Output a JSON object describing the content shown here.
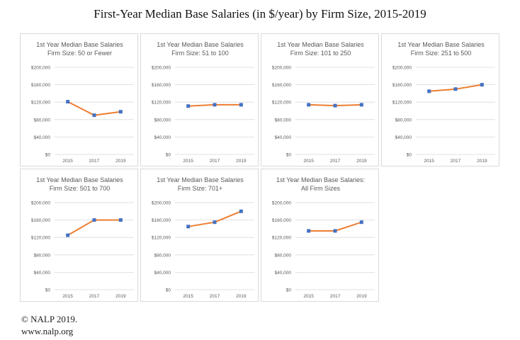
{
  "title": "First-Year Median Base Salaries (in $/year) by Firm Size, 2015-2019",
  "footer": {
    "copyright": "© NALP 2019.",
    "website": "www.nalp.org"
  },
  "styles": {
    "line_color": "#ed7d31",
    "marker_color": "#4472c4",
    "grid_color": "#d9d9d9",
    "text_color": "#595959"
  },
  "chart_data": [
    {
      "type": "line",
      "title_lines": [
        "1st Year Median Base Salaries",
        "Firm Size: 50 or Fewer"
      ],
      "x": [
        "2015",
        "2017",
        "2019"
      ],
      "values": [
        121000,
        90000,
        98000
      ],
      "yticks": [
        "$0",
        "$40,000",
        "$80,000",
        "$120,000",
        "$160,000",
        "$200,000"
      ],
      "ylim": [
        0,
        200000
      ]
    },
    {
      "type": "line",
      "title_lines": [
        "1st Year Median Base Salaries",
        "Firm Size: 51 to 100"
      ],
      "x": [
        "2015",
        "2017",
        "2019"
      ],
      "values": [
        111000,
        114000,
        114000
      ],
      "yticks": [
        "$0",
        "$40,000",
        "$80,000",
        "$120,000",
        "$160,000",
        "$200,000"
      ],
      "ylim": [
        0,
        200000
      ]
    },
    {
      "type": "line",
      "title_lines": [
        "1st Year Median Base Salaries",
        "Firm Size: 101 to 250"
      ],
      "x": [
        "2015",
        "2017",
        "2019"
      ],
      "values": [
        114000,
        112000,
        114000
      ],
      "yticks": [
        "$0",
        "$40,000",
        "$80,000",
        "$120,000",
        "$160,000",
        "$200,000"
      ],
      "ylim": [
        0,
        200000
      ]
    },
    {
      "type": "line",
      "title_lines": [
        "1st Year Median Base Salaries",
        "Firm Size: 251 to 500"
      ],
      "x": [
        "2015",
        "2017",
        "2019"
      ],
      "values": [
        145000,
        150000,
        160000
      ],
      "yticks": [
        "$0",
        "$40,000",
        "$80,000",
        "$120,000",
        "$160,000",
        "$200,000"
      ],
      "ylim": [
        0,
        200000
      ]
    },
    {
      "type": "line",
      "title_lines": [
        "1st Year Median Base Salaries",
        "Firm Size: 501 to 700"
      ],
      "x": [
        "2015",
        "2017",
        "2019"
      ],
      "values": [
        125000,
        160000,
        160000
      ],
      "yticks": [
        "$0",
        "$40,000",
        "$80,000",
        "$120,000",
        "$160,000",
        "$200,000"
      ],
      "ylim": [
        0,
        200000
      ]
    },
    {
      "type": "line",
      "title_lines": [
        "1st Year Median Base Salaries",
        "Firm Size: 701+"
      ],
      "x": [
        "2015",
        "2017",
        "2019"
      ],
      "values": [
        145000,
        155000,
        180000
      ],
      "yticks": [
        "$0",
        "$40,000",
        "$80,000",
        "$120,000",
        "$160,000",
        "$200,000"
      ],
      "ylim": [
        0,
        200000
      ]
    },
    {
      "type": "line",
      "title_lines": [
        "1st Year Median Base Salaries:",
        "All Firm Sizes"
      ],
      "x": [
        "2015",
        "2017",
        "2019"
      ],
      "values": [
        135000,
        135000,
        155000
      ],
      "yticks": [
        "$0",
        "$40,000",
        "$80,000",
        "$120,000",
        "$160,000",
        "$200,000"
      ],
      "ylim": [
        0,
        200000
      ]
    }
  ]
}
